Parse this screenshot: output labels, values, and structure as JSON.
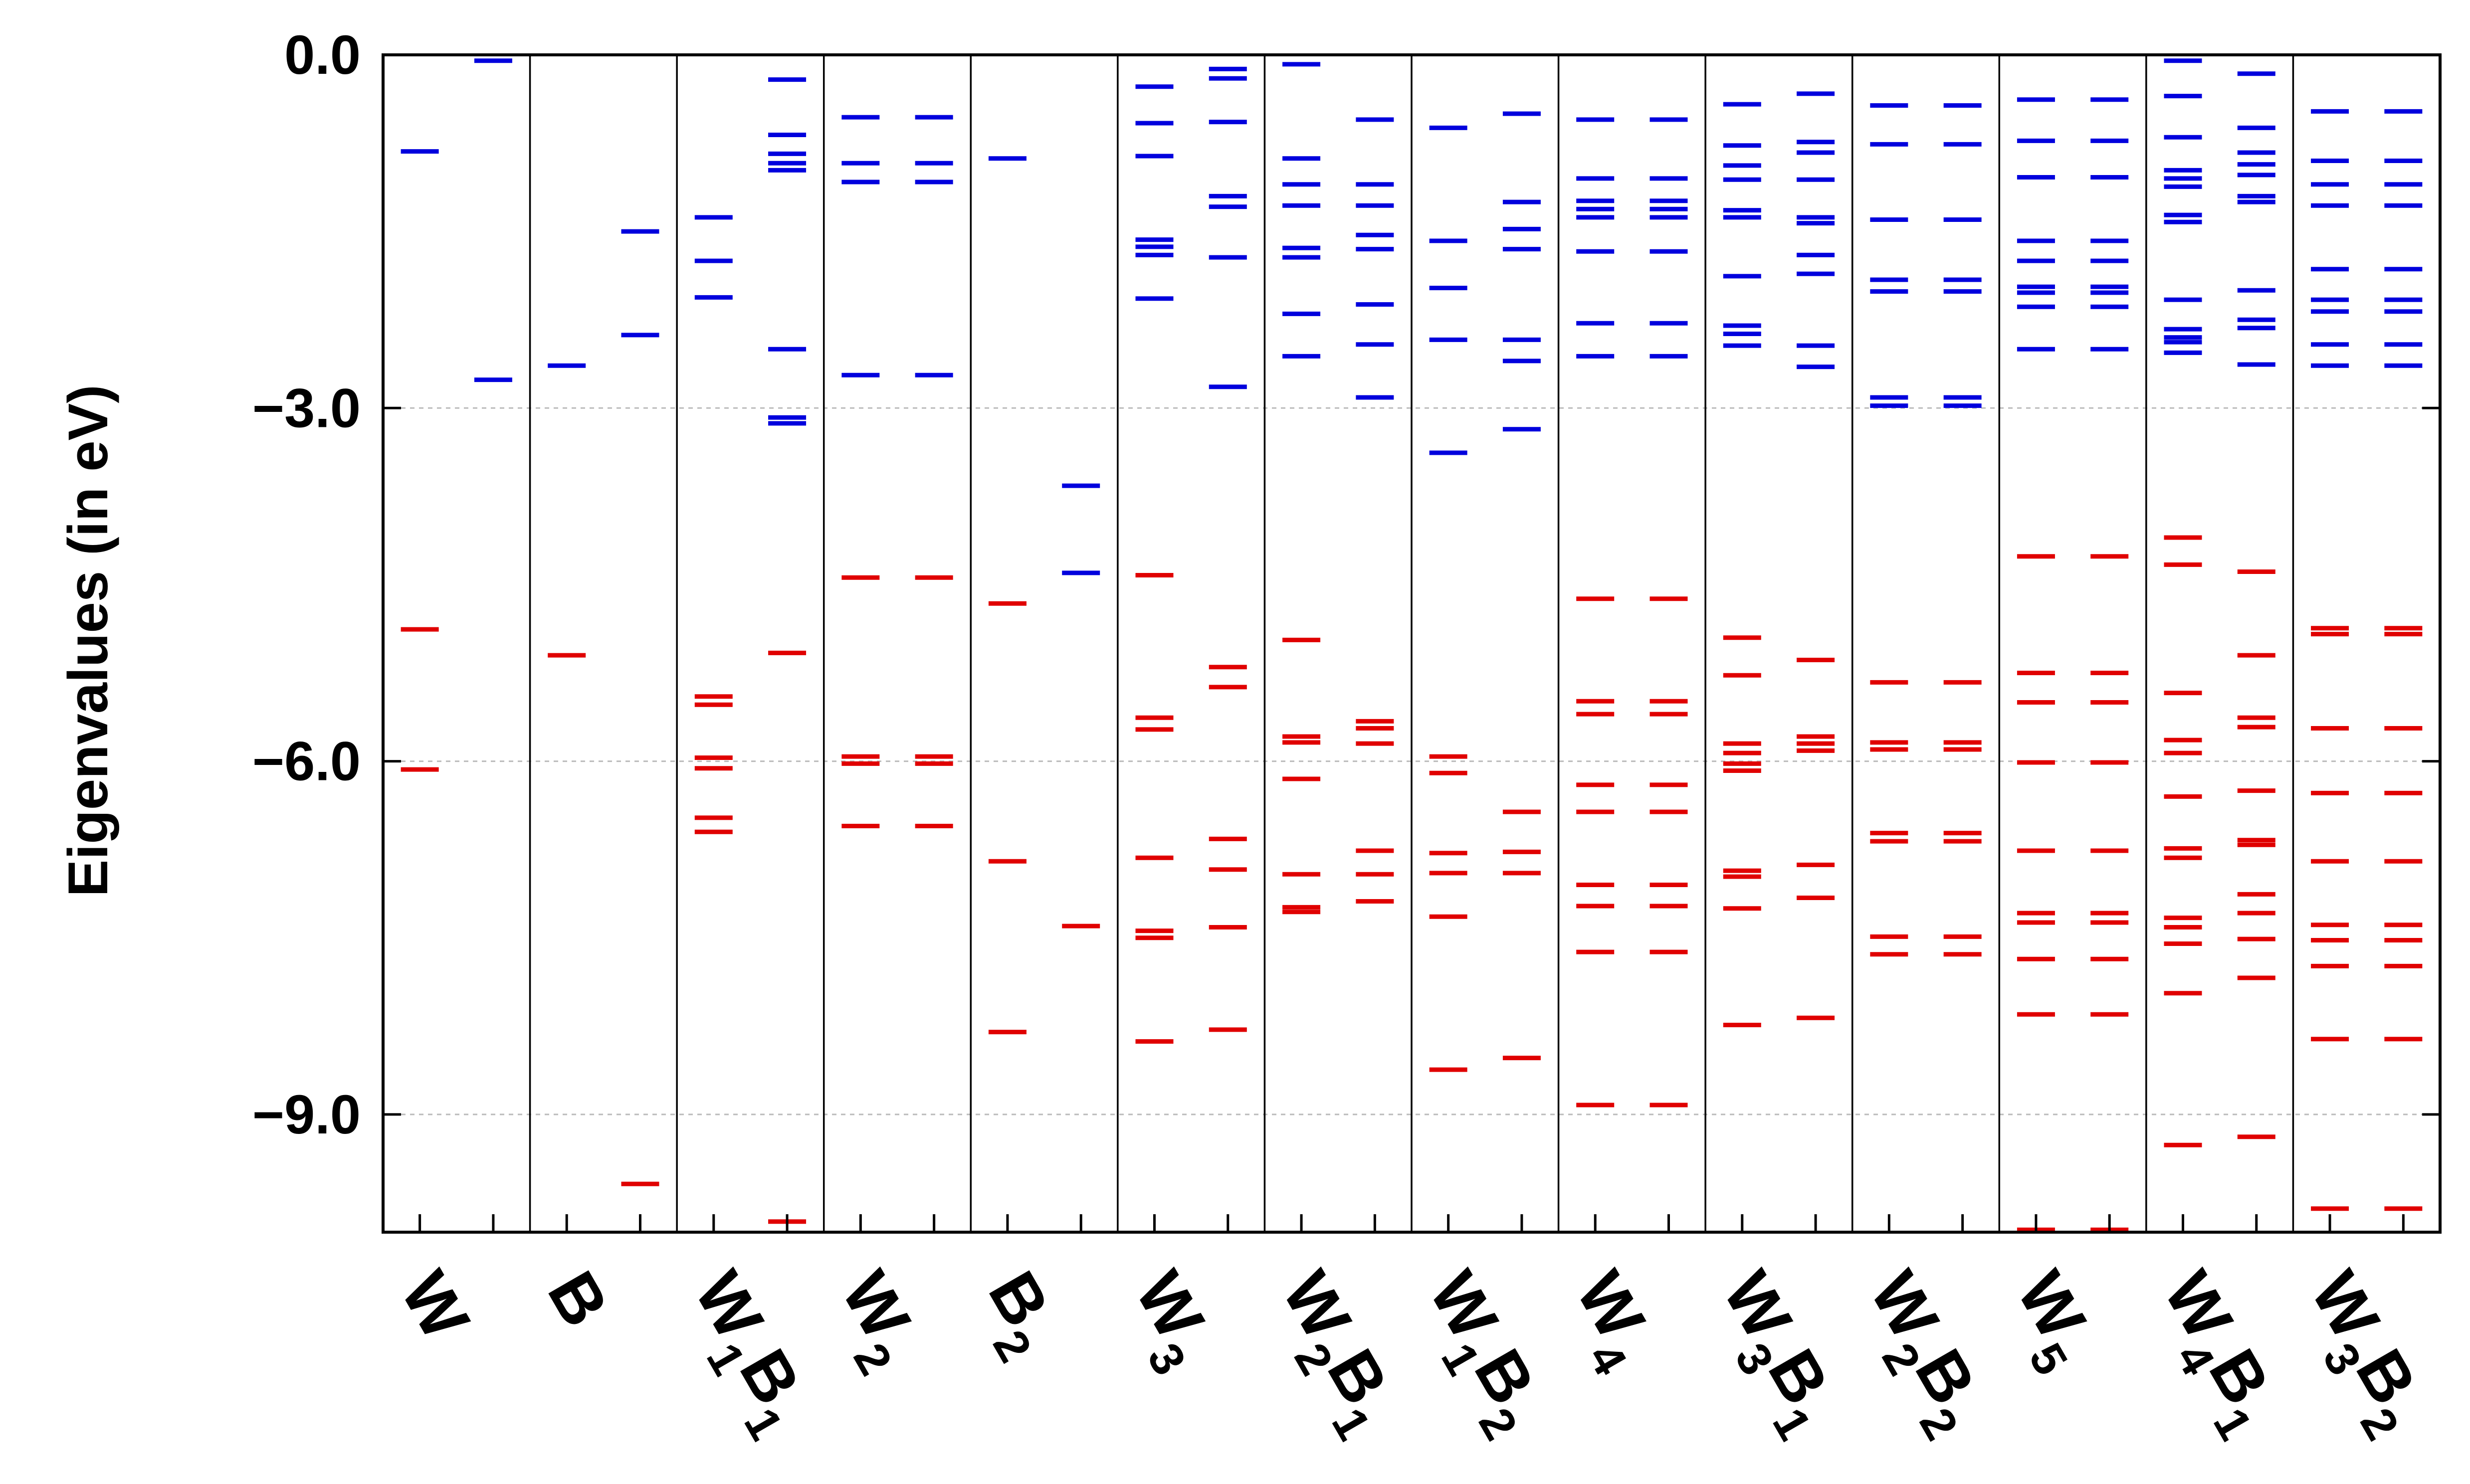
{
  "chart_data": {
    "type": "energy-level",
    "ylabel": "Eigenvalues (in eV)",
    "ylim": [
      -10.0,
      0.0
    ],
    "yticks": [
      0.0,
      -3.0,
      -6.0,
      -9.0
    ],
    "ytick_labels": [
      "0.0",
      "−3.0",
      "−6.0",
      "−9.0"
    ],
    "grid": "horizontal dotted at major y ticks",
    "series_colors": {
      "occupied": "#e00000",
      "unoccupied": "#0000dd"
    },
    "categories": [
      {
        "label": "W",
        "sub1": "",
        "label2": "",
        "sub2": "",
        "columns": [
          {
            "blue": [
              -0.82
            ],
            "red": [
              -4.88,
              -6.07
            ]
          },
          {
            "blue": [
              -0.05,
              -2.76
            ],
            "red": []
          }
        ]
      },
      {
        "label": "B",
        "sub1": "",
        "label2": "",
        "sub2": "",
        "columns": [
          {
            "blue": [
              -2.64
            ],
            "red": [
              -5.1
            ]
          },
          {
            "blue": [
              -1.5,
              -2.38
            ],
            "red": [
              -9.59
            ]
          }
        ]
      },
      {
        "label": "W",
        "sub1": "1",
        "label2": "B",
        "sub2": "1",
        "columns": [
          {
            "blue": [
              -1.38,
              -1.75,
              -2.06
            ],
            "red": [
              -5.45,
              -5.52,
              -5.97,
              -6.06,
              -6.48,
              -6.6
            ]
          },
          {
            "blue": [
              -0.21,
              -0.68,
              -0.84,
              -0.92,
              -0.98,
              -2.5,
              -3.08,
              -3.13
            ],
            "red": [
              -5.08,
              -9.91
            ]
          }
        ]
      },
      {
        "label": "W",
        "sub1": "2",
        "label2": "",
        "sub2": "",
        "columns": [
          {
            "blue": [
              -0.53,
              -0.92,
              -1.08,
              -2.72
            ],
            "red": [
              -4.44,
              -5.96,
              -6.02,
              -6.55
            ]
          },
          {
            "blue": [
              -0.53,
              -0.92,
              -1.08,
              -2.72
            ],
            "red": [
              -4.44,
              -5.96,
              -6.02,
              -6.55
            ]
          }
        ]
      },
      {
        "label": "B",
        "sub1": "2",
        "label2": "",
        "sub2": "",
        "columns": [
          {
            "blue": [
              -0.88
            ],
            "red": [
              -4.66,
              -6.85,
              -8.3
            ]
          },
          {
            "blue": [
              -3.66,
              -4.4
            ],
            "red": [
              -7.4
            ]
          }
        ]
      },
      {
        "label": "W",
        "sub1": "3",
        "label2": "",
        "sub2": "",
        "columns": [
          {
            "blue": [
              -0.27,
              -0.58,
              -0.86,
              -1.57,
              -1.63,
              -1.7,
              -2.07
            ],
            "red": [
              -4.42,
              -5.63,
              -5.73,
              -6.82,
              -7.44,
              -7.5,
              -8.38
            ]
          },
          {
            "blue": [
              -0.12,
              -0.2,
              -0.57,
              -1.2,
              -1.29,
              -1.72,
              -2.82
            ],
            "red": [
              -5.2,
              -5.37,
              -6.66,
              -6.92,
              -7.41,
              -8.28
            ]
          }
        ]
      },
      {
        "label": "W",
        "sub1": "2",
        "label2": "B",
        "sub2": "1",
        "columns": [
          {
            "blue": [
              -0.08,
              -0.88,
              -1.1,
              -1.28,
              -1.64,
              -1.72,
              -2.2,
              -2.56
            ],
            "red": [
              -4.97,
              -5.79,
              -5.84,
              -6.15,
              -6.96,
              -7.24,
              -7.28
            ]
          },
          {
            "blue": [
              -0.55,
              -1.1,
              -1.28,
              -1.53,
              -1.65,
              -2.12,
              -2.46,
              -2.91
            ],
            "red": [
              -5.66,
              -5.72,
              -5.85,
              -6.76,
              -6.96,
              -7.19
            ]
          }
        ]
      },
      {
        "label": "W",
        "sub1": "1",
        "label2": "B",
        "sub2": "2",
        "columns": [
          {
            "blue": [
              -0.62,
              -1.58,
              -1.98,
              -2.42,
              -3.38
            ],
            "red": [
              -5.96,
              -6.1,
              -6.78,
              -6.95,
              -7.32,
              -8.62
            ]
          },
          {
            "blue": [
              -0.5,
              -1.25,
              -1.48,
              -1.65,
              -2.42,
              -2.6,
              -3.18
            ],
            "red": [
              -6.43,
              -6.77,
              -6.95,
              -8.52
            ]
          }
        ]
      },
      {
        "label": "W",
        "sub1": "4",
        "label2": "",
        "sub2": "",
        "columns": [
          {
            "blue": [
              -0.55,
              -1.05,
              -1.24,
              -1.31,
              -1.38,
              -1.67,
              -2.28,
              -2.56
            ],
            "red": [
              -4.62,
              -5.49,
              -5.6,
              -6.2,
              -6.43,
              -7.05,
              -7.23,
              -7.62,
              -8.92
            ]
          },
          {
            "blue": [
              -0.55,
              -1.05,
              -1.24,
              -1.31,
              -1.38,
              -1.67,
              -2.28,
              -2.56
            ],
            "red": [
              -4.62,
              -5.49,
              -5.6,
              -6.2,
              -6.43,
              -7.05,
              -7.23,
              -7.62,
              -8.92
            ]
          }
        ]
      },
      {
        "label": "W",
        "sub1": "3",
        "label2": "B",
        "sub2": "1",
        "columns": [
          {
            "blue": [
              -0.42,
              -0.77,
              -0.94,
              -1.06,
              -1.32,
              -1.38,
              -1.88,
              -2.3,
              -2.37,
              -2.47
            ],
            "red": [
              -4.95,
              -5.27,
              -5.85,
              -5.93,
              -6.02,
              -6.08,
              -6.93,
              -6.98,
              -7.25,
              -8.24
            ]
          },
          {
            "blue": [
              -0.33,
              -0.74,
              -0.83,
              -1.06,
              -1.38,
              -1.43,
              -1.7,
              -1.86,
              -2.47,
              -2.65
            ],
            "red": [
              -5.14,
              -5.79,
              -5.85,
              -5.91,
              -6.88,
              -7.16,
              -8.18
            ]
          }
        ]
      },
      {
        "label": "W",
        "sub1": "2",
        "label2": "B",
        "sub2": "2",
        "columns": [
          {
            "blue": [
              -0.43,
              -0.76,
              -1.4,
              -1.91,
              -2.01,
              -2.91,
              -2.98
            ],
            "red": [
              -5.33,
              -5.84,
              -5.9,
              -6.61,
              -6.68,
              -7.49,
              -7.64
            ]
          },
          {
            "blue": [
              -0.43,
              -0.76,
              -1.4,
              -1.91,
              -2.01,
              -2.91,
              -2.98
            ],
            "red": [
              -5.33,
              -5.84,
              -5.9,
              -6.61,
              -6.68,
              -7.49,
              -7.64
            ]
          }
        ]
      },
      {
        "label": "W",
        "sub1": "5",
        "label2": "",
        "sub2": "",
        "columns": [
          {
            "blue": [
              -0.38,
              -0.73,
              -1.04,
              -1.58,
              -1.75,
              -1.97,
              -2.02,
              -2.14,
              -2.5
            ],
            "red": [
              -4.26,
              -5.25,
              -5.5,
              -6.01,
              -6.76,
              -7.29,
              -7.37,
              -7.68,
              -8.15,
              -9.98
            ]
          },
          {
            "blue": [
              -0.38,
              -0.73,
              -1.04,
              -1.58,
              -1.75,
              -1.97,
              -2.02,
              -2.14,
              -2.5
            ],
            "red": [
              -4.26,
              -5.25,
              -5.5,
              -6.01,
              -6.76,
              -7.29,
              -7.37,
              -7.68,
              -8.15,
              -9.98
            ]
          }
        ]
      },
      {
        "label": "W",
        "sub1": "4",
        "label2": "B",
        "sub2": "1",
        "columns": [
          {
            "blue": [
              -0.05,
              -0.35,
              -0.7,
              -0.98,
              -1.05,
              -1.12,
              -1.36,
              -1.42,
              -2.08,
              -2.33,
              -2.4,
              -2.44,
              -2.53
            ],
            "red": [
              -4.1,
              -4.33,
              -5.42,
              -5.82,
              -5.93,
              -6.3,
              -6.74,
              -6.82,
              -7.33,
              -7.41,
              -7.55,
              -7.97,
              -9.26
            ]
          },
          {
            "blue": [
              -0.16,
              -0.62,
              -0.83,
              -0.93,
              -1.02,
              -1.2,
              -1.25,
              -2.0,
              -2.25,
              -2.32,
              -2.63
            ],
            "red": [
              -4.39,
              -5.1,
              -5.63,
              -5.71,
              -6.25,
              -6.67,
              -6.71,
              -7.13,
              -7.29,
              -7.51,
              -7.84,
              -9.19
            ]
          }
        ]
      },
      {
        "label": "W",
        "sub1": "3",
        "label2": "B",
        "sub2": "2",
        "columns": [
          {
            "blue": [
              -0.48,
              -0.9,
              -1.1,
              -1.28,
              -1.82,
              -2.08,
              -2.18,
              -2.46,
              -2.64
            ],
            "red": [
              -4.87,
              -4.92,
              -5.72,
              -6.27,
              -6.85,
              -7.39,
              -7.52,
              -7.74,
              -8.36,
              -9.8
            ]
          },
          {
            "blue": [
              -0.48,
              -0.9,
              -1.1,
              -1.28,
              -1.82,
              -2.08,
              -2.18,
              -2.46,
              -2.64
            ],
            "red": [
              -4.87,
              -4.92,
              -5.72,
              -6.27,
              -6.85,
              -7.39,
              -7.52,
              -7.74,
              -8.36,
              -9.8
            ]
          }
        ]
      }
    ]
  }
}
